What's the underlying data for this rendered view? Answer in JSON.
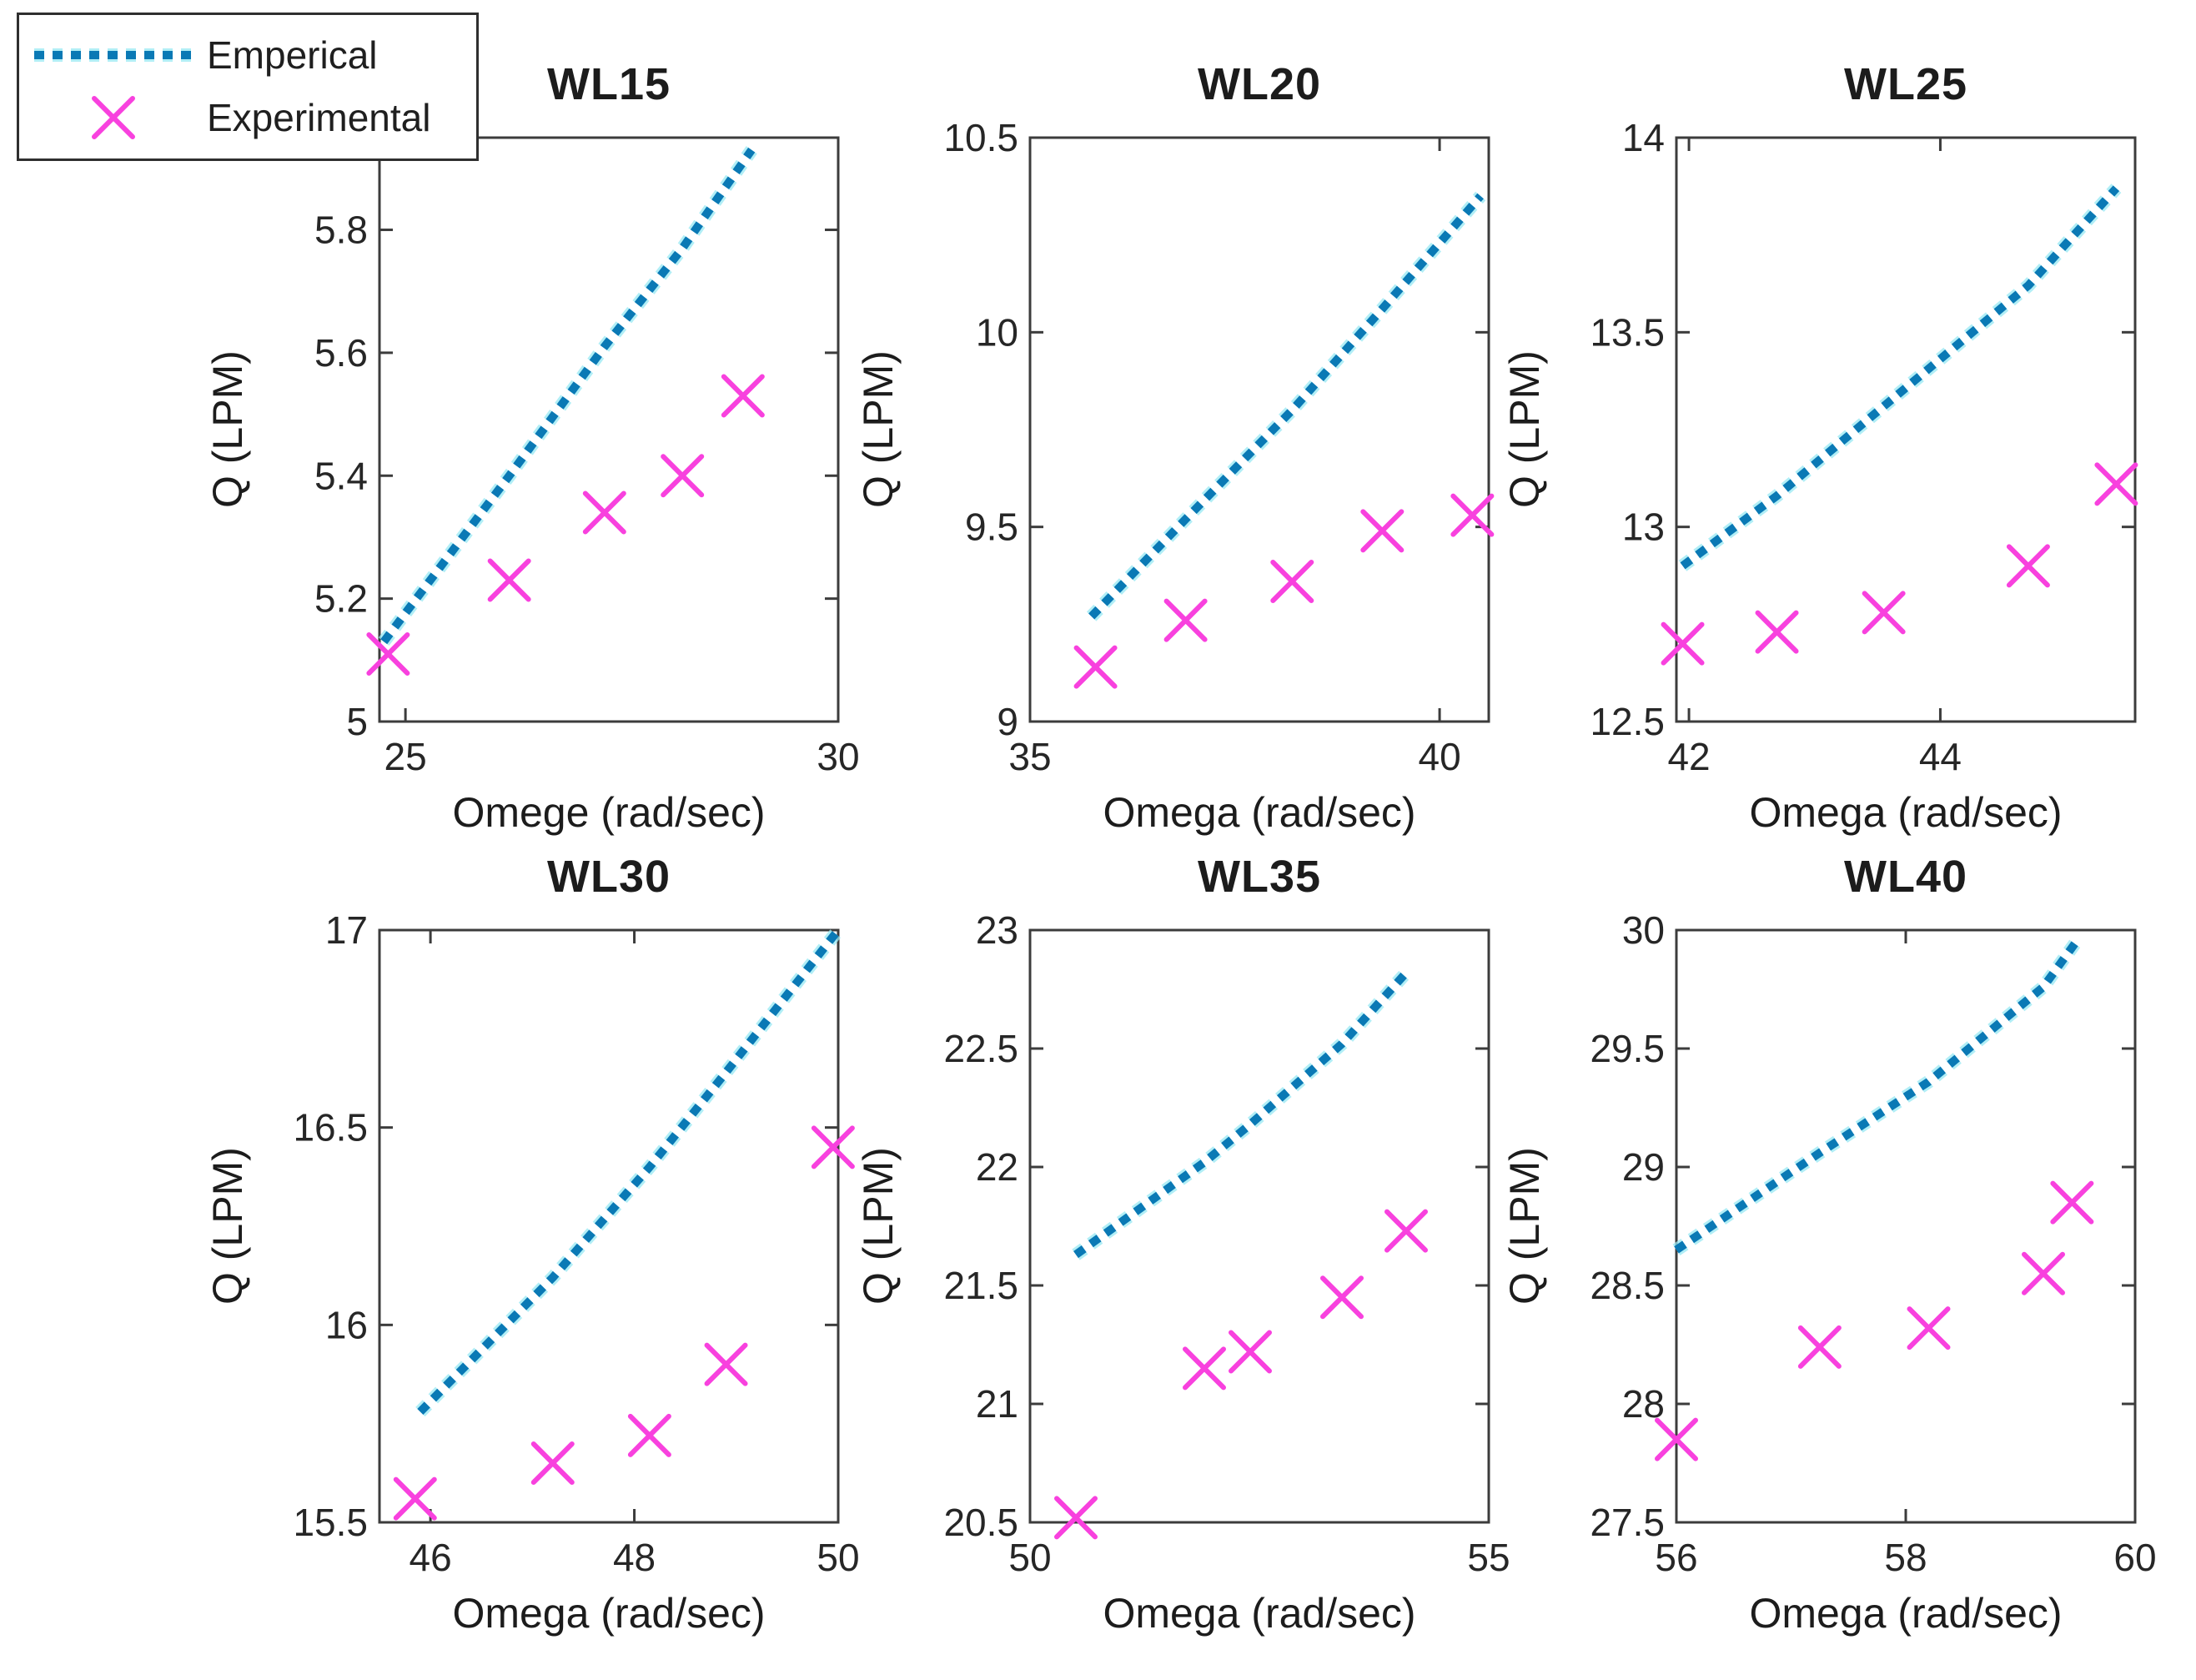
{
  "figure": {
    "background": "#ffffff",
    "axis_color": "#3c3c3c",
    "text_color": "#262626",
    "tick_length": 16
  },
  "legend": {
    "items": [
      {
        "label": "Emperical",
        "marker": "dashed-line",
        "color": "#0a79b5",
        "halo": "#97e8f3"
      },
      {
        "label": "Experimental",
        "marker": "x",
        "color": "#f841de"
      }
    ]
  },
  "chart_data": [
    {
      "type": "line",
      "title": "WL15",
      "xlabel": "Omege (rad/sec)",
      "ylabel": "Q (LPM)",
      "xlim": [
        24.7,
        30
      ],
      "ylim": [
        5,
        5.95
      ],
      "xticks": [
        25,
        30
      ],
      "yticks": [
        5,
        5.2,
        5.4,
        5.6,
        5.8
      ],
      "grid": false,
      "legend_position": "outside-top-left",
      "series": [
        {
          "name": "Emperical",
          "style": "dashed",
          "points": [
            [
              24.75,
              5.13
            ],
            [
              26.2,
              5.4
            ],
            [
              27.3,
              5.61
            ],
            [
              28.2,
              5.77
            ],
            [
              29.0,
              5.93
            ]
          ]
        },
        {
          "name": "Experimental",
          "style": "x",
          "points": [
            [
              24.8,
              5.11
            ],
            [
              26.2,
              5.23
            ],
            [
              27.3,
              5.34
            ],
            [
              28.2,
              5.4
            ],
            [
              28.9,
              5.53
            ]
          ]
        }
      ]
    },
    {
      "type": "line",
      "title": "WL20",
      "xlabel": "Omega (rad/sec)",
      "ylabel": "Q (LPM)",
      "xlim": [
        35,
        40.6
      ],
      "ylim": [
        9,
        10.5
      ],
      "xticks": [
        35,
        40
      ],
      "yticks": [
        9,
        9.5,
        10,
        10.5
      ],
      "grid": false,
      "series": [
        {
          "name": "Emperical",
          "style": "dashed",
          "points": [
            [
              35.75,
              9.27
            ],
            [
              36.9,
              9.52
            ],
            [
              38.2,
              9.8
            ],
            [
              39.3,
              10.06
            ],
            [
              40.5,
              10.35
            ]
          ]
        },
        {
          "name": "Experimental",
          "style": "x",
          "points": [
            [
              35.8,
              9.14
            ],
            [
              36.9,
              9.26
            ],
            [
              38.2,
              9.36
            ],
            [
              39.3,
              9.49
            ],
            [
              40.4,
              9.53
            ]
          ]
        }
      ]
    },
    {
      "type": "line",
      "title": "WL25",
      "xlabel": "Omega (rad/sec)",
      "ylabel": "Q (LPM)",
      "xlim": [
        41.9,
        45.55
      ],
      "ylim": [
        12.5,
        14
      ],
      "xticks": [
        42,
        44
      ],
      "yticks": [
        12.5,
        13,
        13.5,
        14
      ],
      "grid": false,
      "series": [
        {
          "name": "Emperical",
          "style": "dashed",
          "points": [
            [
              41.95,
              12.9
            ],
            [
              42.7,
              13.08
            ],
            [
              43.55,
              13.31
            ],
            [
              44.7,
              13.62
            ],
            [
              45.4,
              13.87
            ]
          ]
        },
        {
          "name": "Experimental",
          "style": "x",
          "points": [
            [
              41.95,
              12.7
            ],
            [
              42.7,
              12.73
            ],
            [
              43.55,
              12.78
            ],
            [
              44.7,
              12.9
            ],
            [
              45.4,
              13.11
            ]
          ]
        }
      ]
    },
    {
      "type": "line",
      "title": "WL30",
      "xlabel": "Omega (rad/sec)",
      "ylabel": "Q (LPM)",
      "xlim": [
        45.5,
        50
      ],
      "ylim": [
        15.5,
        17
      ],
      "xticks": [
        46,
        48,
        50
      ],
      "yticks": [
        15.5,
        16,
        16.5,
        17
      ],
      "grid": false,
      "series": [
        {
          "name": "Emperical",
          "style": "dashed",
          "points": [
            [
              45.9,
              15.78
            ],
            [
              47.2,
              16.12
            ],
            [
              48.15,
              16.4
            ],
            [
              48.9,
              16.64
            ],
            [
              50.0,
              17.0
            ]
          ]
        },
        {
          "name": "Experimental",
          "style": "x",
          "points": [
            [
              45.85,
              15.56
            ],
            [
              47.2,
              15.65
            ],
            [
              48.15,
              15.72
            ],
            [
              48.9,
              15.9
            ],
            [
              49.95,
              16.45
            ]
          ]
        }
      ]
    },
    {
      "type": "line",
      "title": "WL35",
      "xlabel": "Omega (rad/sec)",
      "ylabel": "Q (LPM)",
      "xlim": [
        50,
        55
      ],
      "ylim": [
        20.5,
        23
      ],
      "xticks": [
        50,
        55
      ],
      "yticks": [
        20.5,
        21,
        21.5,
        22,
        22.5,
        23
      ],
      "grid": false,
      "series": [
        {
          "name": "Emperical",
          "style": "dashed",
          "points": [
            [
              50.5,
              21.63
            ],
            [
              51.9,
              22.02
            ],
            [
              52.4,
              22.18
            ],
            [
              53.4,
              22.52
            ],
            [
              54.1,
              22.82
            ]
          ]
        },
        {
          "name": "Experimental",
          "style": "x",
          "points": [
            [
              50.5,
              20.52
            ],
            [
              51.9,
              21.15
            ],
            [
              52.4,
              21.22
            ],
            [
              53.4,
              21.45
            ],
            [
              54.1,
              21.73
            ]
          ]
        }
      ]
    },
    {
      "type": "line",
      "title": "WL40",
      "xlabel": "Omega (rad/sec)",
      "ylabel": "Q (LPM)",
      "xlim": [
        56,
        60
      ],
      "ylim": [
        27.5,
        30
      ],
      "xticks": [
        56,
        58,
        60
      ],
      "yticks": [
        27.5,
        28,
        28.5,
        29,
        29.5,
        30
      ],
      "grid": false,
      "series": [
        {
          "name": "Emperical",
          "style": "dashed",
          "points": [
            [
              56.0,
              28.65
            ],
            [
              57.25,
              29.06
            ],
            [
              58.2,
              29.36
            ],
            [
              59.2,
              29.76
            ],
            [
              59.5,
              29.96
            ]
          ]
        },
        {
          "name": "Experimental",
          "style": "x",
          "points": [
            [
              56.0,
              27.85
            ],
            [
              57.25,
              28.24
            ],
            [
              58.2,
              28.32
            ],
            [
              59.2,
              28.55
            ],
            [
              59.45,
              28.85
            ]
          ]
        }
      ]
    }
  ]
}
